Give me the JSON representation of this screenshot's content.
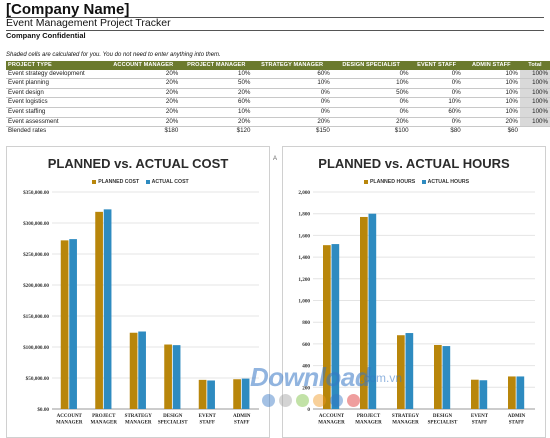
{
  "header": {
    "company": "[Company Name]",
    "project": "Event Management Project Tracker",
    "confidential": "Company Confidential",
    "note": "Shaded cells are calculated for you. You do not need to enter anything into them."
  },
  "table": {
    "columns": [
      "PROJECT TYPE",
      "ACCOUNT MANAGER",
      "PROJECT MANAGER",
      "STRATEGY MANAGER",
      "DESIGN SPECIALIST",
      "EVENT STAFF",
      "ADMIN STAFF",
      "Total"
    ],
    "rows": [
      [
        "Event strategy development",
        "20%",
        "10%",
        "60%",
        "0%",
        "0%",
        "10%",
        "100%"
      ],
      [
        "Event planning",
        "20%",
        "50%",
        "10%",
        "10%",
        "0%",
        "10%",
        "100%"
      ],
      [
        "Event design",
        "20%",
        "20%",
        "0%",
        "50%",
        "0%",
        "10%",
        "100%"
      ],
      [
        "Event logistics",
        "20%",
        "60%",
        "0%",
        "0%",
        "10%",
        "10%",
        "100%"
      ],
      [
        "Event staffing",
        "20%",
        "10%",
        "0%",
        "0%",
        "60%",
        "10%",
        "100%"
      ],
      [
        "Event assessment",
        "20%",
        "20%",
        "20%",
        "20%",
        "0%",
        "20%",
        "100%"
      ]
    ],
    "blended": [
      "Blended rates",
      "$180",
      "$120",
      "$150",
      "$100",
      "$80",
      "$60",
      ""
    ]
  },
  "colors": {
    "header_green": "#6b7a2e",
    "planned": "#b8860b",
    "actual": "#2e8bc0"
  },
  "chart_data": [
    {
      "type": "bar",
      "title": "PLANNED vs. ACTUAL COST",
      "categories": [
        "ACCOUNT MANAGER",
        "PROJECT MANAGER",
        "STRATEGY MANAGER",
        "DESIGN SPECIALIST",
        "EVENT STAFF",
        "ADMIN STAFF"
      ],
      "series": [
        {
          "name": "PLANNED COST",
          "values": [
            272000,
            318000,
            123000,
            104000,
            47000,
            48000
          ]
        },
        {
          "name": "ACTUAL COST",
          "values": [
            274000,
            322000,
            125000,
            103000,
            46000,
            49000
          ]
        }
      ],
      "ylim": [
        0,
        350000
      ],
      "yticks": [
        "$0.00",
        "$50,000.00",
        "$100,000.00",
        "$150,000.00",
        "$200,000.00",
        "$250,000.00",
        "$300,000.00",
        "$350,000.00"
      ],
      "grid": true,
      "legend": "top"
    },
    {
      "type": "bar",
      "title": "PLANNED vs. ACTUAL HOURS",
      "categories": [
        "ACCOUNT MANAGER",
        "PROJECT MANAGER",
        "STRATEGY MANAGER",
        "DESIGN SPECIALIST",
        "EVENT STAFF",
        "ADMIN STAFF"
      ],
      "series": [
        {
          "name": "PLANNED HOURS",
          "values": [
            1510,
            1770,
            680,
            590,
            270,
            300
          ]
        },
        {
          "name": "ACTUAL HOURS",
          "values": [
            1520,
            1800,
            700,
            580,
            265,
            300
          ]
        }
      ],
      "ylim": [
        0,
        2000
      ],
      "yticks": [
        "0",
        "200",
        "400",
        "600",
        "800",
        "1,000",
        "1,200",
        "1,400",
        "1,600",
        "1,800",
        "2,000"
      ],
      "grid": true,
      "legend": "top"
    }
  ],
  "watermark": {
    "brand": "Download",
    "domain": ".com.vn"
  }
}
